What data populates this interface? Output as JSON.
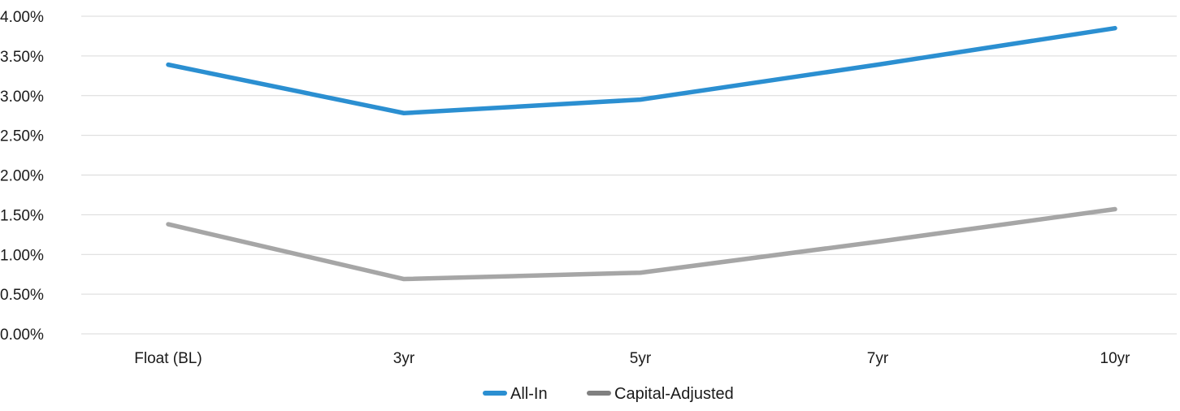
{
  "chart_data": {
    "type": "line",
    "categories": [
      "Float (BL)",
      "3yr",
      "5yr",
      "7yr",
      "10yr"
    ],
    "series": [
      {
        "name": "All-In",
        "color": "#2b8fd1",
        "values": [
          3.39,
          2.78,
          2.95,
          3.39,
          3.85
        ]
      },
      {
        "name": "Capital-Adjusted",
        "color": "#a6a6a6",
        "legend_color": "#808080",
        "values": [
          1.38,
          0.69,
          0.77,
          1.16,
          1.57
        ]
      }
    ],
    "y_ticks": [
      {
        "value": 0.0,
        "label": "0.00%"
      },
      {
        "value": 0.5,
        "label": "0.50%"
      },
      {
        "value": 1.0,
        "label": "1.00%"
      },
      {
        "value": 1.5,
        "label": "1.50%"
      },
      {
        "value": 2.0,
        "label": "2.00%"
      },
      {
        "value": 2.5,
        "label": "2.50%"
      },
      {
        "value": 3.0,
        "label": "3.00%"
      },
      {
        "value": 3.5,
        "label": "3.50%"
      },
      {
        "value": 4.0,
        "label": "4.00%"
      }
    ],
    "ylim": [
      0,
      4
    ],
    "grid": true,
    "legend_position": "bottom-center",
    "title": "",
    "xlabel": "",
    "ylabel": "",
    "gridline_color": "#d9d9d9"
  }
}
